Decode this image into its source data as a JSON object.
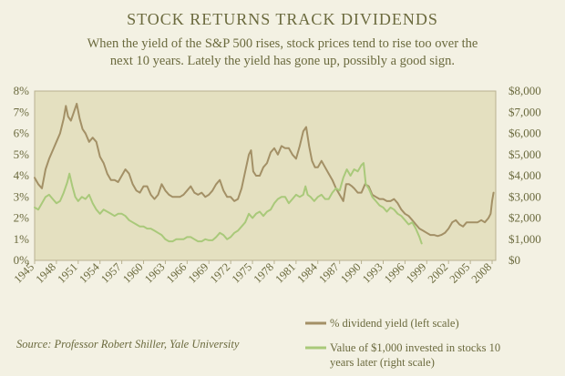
{
  "chart_data": {
    "type": "line",
    "title": "STOCK RETURNS TRACK DIVIDENDS",
    "subtitle_lines": [
      "When the yield of the S&P 500 rises, stock prices tend to rise too over the",
      "next 10 years.  Lately the yield has gone up, possibly a good sign."
    ],
    "source": "Source: Professor Robert Shiller, Yale University",
    "xlim": [
      1945,
      2008.5
    ],
    "x_ticks": [
      "1945",
      "1948",
      "1951",
      "1954",
      "1957",
      "1960",
      "1963",
      "1966",
      "1969",
      "1972",
      "1975",
      "1978",
      "1981",
      "1984",
      "1987",
      "1990",
      "1993",
      "1996",
      "1999",
      "2002",
      "2005",
      "2008"
    ],
    "y_left": {
      "ylim": [
        0,
        8
      ],
      "ticks": [
        "0%",
        "1%",
        "2%",
        "3%",
        "4%",
        "5%",
        "6%",
        "7%",
        "8%"
      ]
    },
    "y_right": {
      "ylim": [
        0,
        8000
      ],
      "ticks": [
        "$0",
        "$1,000",
        "$2,000",
        "$3,000",
        "$4,000",
        "$5,000",
        "$6,000",
        "$7,000",
        "$8,000"
      ]
    },
    "grid": false,
    "legend_position": "bottom-right",
    "series": [
      {
        "name": "% dividend yield (left scale)",
        "axis": "left",
        "color": "#a39066",
        "points": [
          [
            1945.0,
            3.9
          ],
          [
            1945.5,
            3.6
          ],
          [
            1946.0,
            3.4
          ],
          [
            1946.5,
            4.3
          ],
          [
            1947.0,
            4.8
          ],
          [
            1947.5,
            5.2
          ],
          [
            1948.0,
            5.6
          ],
          [
            1948.5,
            6.0
          ],
          [
            1949.0,
            6.7
          ],
          [
            1949.3,
            7.3
          ],
          [
            1949.6,
            6.8
          ],
          [
            1950.0,
            6.6
          ],
          [
            1950.4,
            7.0
          ],
          [
            1950.8,
            7.4
          ],
          [
            1951.2,
            6.7
          ],
          [
            1951.6,
            6.2
          ],
          [
            1952.0,
            6.0
          ],
          [
            1952.5,
            5.6
          ],
          [
            1953.0,
            5.8
          ],
          [
            1953.5,
            5.6
          ],
          [
            1954.0,
            4.9
          ],
          [
            1954.5,
            4.6
          ],
          [
            1955.0,
            4.1
          ],
          [
            1955.5,
            3.8
          ],
          [
            1956.0,
            3.8
          ],
          [
            1956.5,
            3.7
          ],
          [
            1957.0,
            4.0
          ],
          [
            1957.5,
            4.3
          ],
          [
            1958.0,
            4.1
          ],
          [
            1958.5,
            3.6
          ],
          [
            1959.0,
            3.3
          ],
          [
            1959.5,
            3.2
          ],
          [
            1960.0,
            3.5
          ],
          [
            1960.5,
            3.5
          ],
          [
            1961.0,
            3.1
          ],
          [
            1961.5,
            2.9
          ],
          [
            1962.0,
            3.1
          ],
          [
            1962.5,
            3.6
          ],
          [
            1963.0,
            3.3
          ],
          [
            1963.5,
            3.1
          ],
          [
            1964.0,
            3.0
          ],
          [
            1964.5,
            3.0
          ],
          [
            1965.0,
            3.0
          ],
          [
            1965.5,
            3.1
          ],
          [
            1966.0,
            3.3
          ],
          [
            1966.5,
            3.5
          ],
          [
            1967.0,
            3.2
          ],
          [
            1967.5,
            3.1
          ],
          [
            1968.0,
            3.2
          ],
          [
            1968.5,
            3.0
          ],
          [
            1969.0,
            3.1
          ],
          [
            1969.5,
            3.3
          ],
          [
            1970.0,
            3.6
          ],
          [
            1970.5,
            3.8
          ],
          [
            1971.0,
            3.3
          ],
          [
            1971.5,
            3.0
          ],
          [
            1972.0,
            3.0
          ],
          [
            1972.5,
            2.8
          ],
          [
            1973.0,
            2.9
          ],
          [
            1973.5,
            3.4
          ],
          [
            1974.0,
            4.2
          ],
          [
            1974.5,
            5.0
          ],
          [
            1974.8,
            5.2
          ],
          [
            1975.1,
            4.2
          ],
          [
            1975.5,
            4.0
          ],
          [
            1976.0,
            4.0
          ],
          [
            1976.5,
            4.4
          ],
          [
            1977.0,
            4.6
          ],
          [
            1977.5,
            5.1
          ],
          [
            1978.0,
            5.3
          ],
          [
            1978.5,
            5.0
          ],
          [
            1979.0,
            5.4
          ],
          [
            1979.5,
            5.3
          ],
          [
            1980.0,
            5.3
          ],
          [
            1980.5,
            5.0
          ],
          [
            1981.0,
            4.8
          ],
          [
            1981.5,
            5.4
          ],
          [
            1982.0,
            6.1
          ],
          [
            1982.4,
            6.3
          ],
          [
            1982.8,
            5.4
          ],
          [
            1983.2,
            4.7
          ],
          [
            1983.6,
            4.4
          ],
          [
            1984.0,
            4.4
          ],
          [
            1984.5,
            4.7
          ],
          [
            1985.0,
            4.4
          ],
          [
            1985.5,
            4.1
          ],
          [
            1986.0,
            3.8
          ],
          [
            1986.5,
            3.4
          ],
          [
            1987.0,
            3.1
          ],
          [
            1987.5,
            2.8
          ],
          [
            1987.9,
            3.6
          ],
          [
            1988.3,
            3.6
          ],
          [
            1988.7,
            3.5
          ],
          [
            1989.0,
            3.4
          ],
          [
            1989.5,
            3.2
          ],
          [
            1990.0,
            3.2
          ],
          [
            1990.5,
            3.6
          ],
          [
            1991.0,
            3.5
          ],
          [
            1991.5,
            3.1
          ],
          [
            1992.0,
            3.0
          ],
          [
            1992.5,
            2.9
          ],
          [
            1993.0,
            2.9
          ],
          [
            1993.5,
            2.8
          ],
          [
            1994.0,
            2.8
          ],
          [
            1994.5,
            2.9
          ],
          [
            1995.0,
            2.7
          ],
          [
            1995.5,
            2.4
          ],
          [
            1996.0,
            2.2
          ],
          [
            1996.5,
            2.1
          ],
          [
            1997.0,
            1.9
          ],
          [
            1997.5,
            1.7
          ],
          [
            1998.0,
            1.5
          ],
          [
            1998.5,
            1.4
          ],
          [
            1999.0,
            1.3
          ],
          [
            1999.5,
            1.2
          ],
          [
            2000.0,
            1.2
          ],
          [
            2000.5,
            1.15
          ],
          [
            2001.0,
            1.2
          ],
          [
            2001.5,
            1.3
          ],
          [
            2002.0,
            1.5
          ],
          [
            2002.5,
            1.8
          ],
          [
            2003.0,
            1.9
          ],
          [
            2003.5,
            1.7
          ],
          [
            2004.0,
            1.6
          ],
          [
            2004.5,
            1.8
          ],
          [
            2005.0,
            1.8
          ],
          [
            2005.5,
            1.8
          ],
          [
            2006.0,
            1.8
          ],
          [
            2006.5,
            1.9
          ],
          [
            2007.0,
            1.8
          ],
          [
            2007.5,
            2.0
          ],
          [
            2007.8,
            2.2
          ],
          [
            2008.0,
            2.8
          ],
          [
            2008.2,
            3.2
          ]
        ]
      },
      {
        "name": "Value of $1,000 invested  in stocks 10 years later (right scale)",
        "axis": "right",
        "color": "#a9c97a",
        "points": [
          [
            1945.0,
            2500
          ],
          [
            1945.5,
            2400
          ],
          [
            1946.0,
            2700
          ],
          [
            1946.5,
            3000
          ],
          [
            1947.0,
            3100
          ],
          [
            1947.5,
            2900
          ],
          [
            1948.0,
            2700
          ],
          [
            1948.5,
            2800
          ],
          [
            1949.0,
            3200
          ],
          [
            1949.5,
            3700
          ],
          [
            1949.8,
            4100
          ],
          [
            1950.2,
            3500
          ],
          [
            1950.6,
            3000
          ],
          [
            1951.0,
            2800
          ],
          [
            1951.5,
            3000
          ],
          [
            1952.0,
            2900
          ],
          [
            1952.5,
            3100
          ],
          [
            1953.0,
            2700
          ],
          [
            1953.5,
            2400
          ],
          [
            1954.0,
            2200
          ],
          [
            1954.5,
            2400
          ],
          [
            1955.0,
            2300
          ],
          [
            1955.5,
            2200
          ],
          [
            1956.0,
            2100
          ],
          [
            1956.5,
            2200
          ],
          [
            1957.0,
            2200
          ],
          [
            1957.5,
            2100
          ],
          [
            1958.0,
            1900
          ],
          [
            1958.5,
            1800
          ],
          [
            1959.0,
            1700
          ],
          [
            1959.5,
            1600
          ],
          [
            1960.0,
            1600
          ],
          [
            1960.5,
            1500
          ],
          [
            1961.0,
            1500
          ],
          [
            1961.5,
            1400
          ],
          [
            1962.0,
            1300
          ],
          [
            1962.5,
            1200
          ],
          [
            1963.0,
            1000
          ],
          [
            1963.5,
            900
          ],
          [
            1964.0,
            900
          ],
          [
            1964.5,
            1000
          ],
          [
            1965.0,
            1000
          ],
          [
            1965.5,
            1000
          ],
          [
            1966.0,
            1100
          ],
          [
            1966.5,
            1100
          ],
          [
            1967.0,
            1000
          ],
          [
            1967.5,
            900
          ],
          [
            1968.0,
            900
          ],
          [
            1968.5,
            1000
          ],
          [
            1969.0,
            950
          ],
          [
            1969.5,
            950
          ],
          [
            1970.0,
            1100
          ],
          [
            1970.5,
            1300
          ],
          [
            1971.0,
            1200
          ],
          [
            1971.5,
            1000
          ],
          [
            1972.0,
            1100
          ],
          [
            1972.5,
            1300
          ],
          [
            1973.0,
            1400
          ],
          [
            1973.5,
            1600
          ],
          [
            1974.0,
            1800
          ],
          [
            1974.5,
            2200
          ],
          [
            1975.0,
            2000
          ],
          [
            1975.5,
            2200
          ],
          [
            1976.0,
            2300
          ],
          [
            1976.5,
            2100
          ],
          [
            1977.0,
            2300
          ],
          [
            1977.5,
            2400
          ],
          [
            1978.0,
            2700
          ],
          [
            1978.5,
            2900
          ],
          [
            1979.0,
            3000
          ],
          [
            1979.5,
            3000
          ],
          [
            1980.0,
            2700
          ],
          [
            1980.5,
            2900
          ],
          [
            1981.0,
            3100
          ],
          [
            1981.5,
            3000
          ],
          [
            1982.0,
            3100
          ],
          [
            1982.3,
            3500
          ],
          [
            1982.6,
            3100
          ],
          [
            1983.0,
            3000
          ],
          [
            1983.5,
            2800
          ],
          [
            1984.0,
            3000
          ],
          [
            1984.5,
            3100
          ],
          [
            1985.0,
            2900
          ],
          [
            1985.5,
            2900
          ],
          [
            1986.0,
            3200
          ],
          [
            1986.5,
            3400
          ],
          [
            1987.0,
            3300
          ],
          [
            1987.5,
            3900
          ],
          [
            1988.0,
            4300
          ],
          [
            1988.5,
            4000
          ],
          [
            1989.0,
            4300
          ],
          [
            1989.5,
            4200
          ],
          [
            1990.0,
            4500
          ],
          [
            1990.3,
            4600
          ],
          [
            1990.6,
            3600
          ],
          [
            1991.0,
            3400
          ],
          [
            1991.5,
            3000
          ],
          [
            1992.0,
            2800
          ],
          [
            1992.5,
            2600
          ],
          [
            1993.0,
            2500
          ],
          [
            1993.5,
            2300
          ],
          [
            1994.0,
            2500
          ],
          [
            1994.5,
            2400
          ],
          [
            1995.0,
            2200
          ],
          [
            1995.5,
            2100
          ],
          [
            1996.0,
            1900
          ],
          [
            1996.5,
            1700
          ],
          [
            1997.0,
            1800
          ],
          [
            1997.5,
            1500
          ],
          [
            1998.0,
            1100
          ],
          [
            1998.3,
            800
          ]
        ]
      }
    ]
  }
}
